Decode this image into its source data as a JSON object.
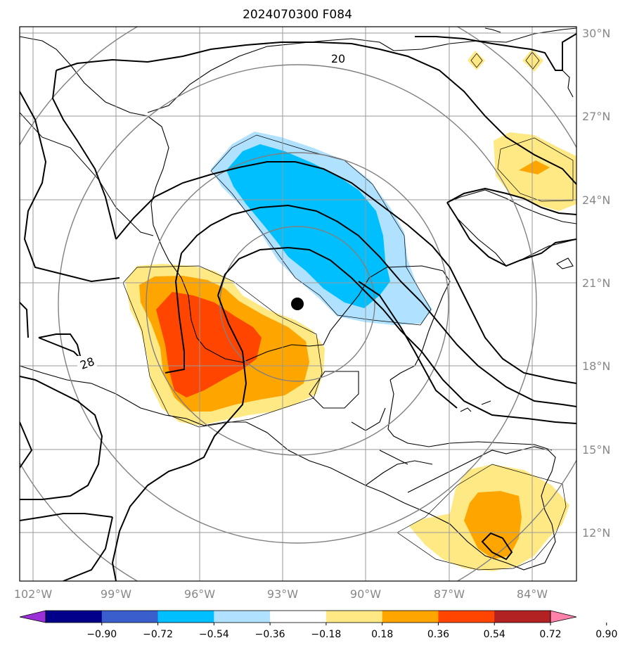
{
  "map": {
    "title": "2024070300 F084",
    "lon_ticks": [
      "102°W",
      "99°W",
      "96°W",
      "93°W",
      "90°W",
      "87°W",
      "84°W"
    ],
    "lat_ticks": [
      "30°N",
      "27°N",
      "24°N",
      "21°N",
      "18°N",
      "15°N",
      "12°N"
    ],
    "contour_labels": [
      "20",
      "28"
    ],
    "colorbar": {
      "ticks": [
        "−0.90",
        "−0.72",
        "−0.54",
        "−0.36",
        "−0.18",
        "0.18",
        "0.36",
        "0.54",
        "0.72",
        "0.90"
      ],
      "colors": [
        "#9b30d9",
        "#00008b",
        "#3a5fcd",
        "#00bfff",
        "#b0e2ff",
        "#ffffff",
        "#ffe985",
        "#ffa500",
        "#ff4500",
        "#b22222",
        "#ff82ab"
      ]
    },
    "marker": "storm-center-dot"
  }
}
